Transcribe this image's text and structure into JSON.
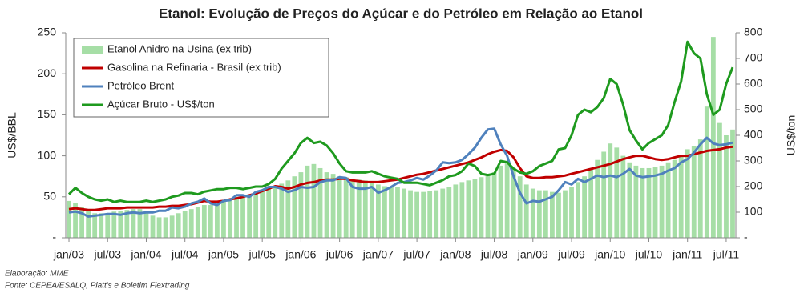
{
  "chart_data": {
    "type": "combo",
    "title": "Etanol: Evolução de Preços do Açúcar e do Petróleo em Relação ao Etanol",
    "ylabel": "US$/BBL",
    "y2label": "US$/ton",
    "notes": [
      "Elaboração: MME",
      "Fonte: CEPEA/ESALQ, Platt's e Boletim Flextrading"
    ],
    "legend": "upper left",
    "grid": false,
    "ylim": [
      0,
      250
    ],
    "yticks": [
      {
        "value": 0,
        "label": "-"
      },
      50,
      100,
      150,
      200,
      250
    ],
    "y2lim": [
      0,
      800
    ],
    "y2ticks": [
      {
        "value": 0,
        "label": "-"
      },
      100,
      200,
      300,
      400,
      500,
      600,
      700,
      800
    ],
    "categories": [
      "jan/03",
      null,
      null,
      null,
      null,
      null,
      "jul/03",
      null,
      null,
      null,
      null,
      null,
      "jan/04",
      null,
      null,
      null,
      null,
      null,
      "jul/04",
      null,
      null,
      null,
      null,
      null,
      "jan/05",
      null,
      null,
      null,
      null,
      null,
      "jul/05",
      null,
      null,
      null,
      null,
      null,
      "jan/06",
      null,
      null,
      null,
      null,
      null,
      "jul/06",
      null,
      null,
      null,
      null,
      null,
      "jan/07",
      null,
      null,
      null,
      null,
      null,
      "jul/07",
      null,
      null,
      null,
      null,
      null,
      "jan/08",
      null,
      null,
      null,
      null,
      null,
      "jul/08",
      null,
      null,
      null,
      null,
      null,
      "jan/09",
      null,
      null,
      null,
      null,
      null,
      "jul/09",
      null,
      null,
      null,
      null,
      null,
      "jan/10",
      null,
      null,
      null,
      null,
      null,
      "jul/10",
      null,
      null,
      null,
      null,
      null,
      "jan/11",
      null,
      null,
      null,
      null,
      null,
      "jul/11",
      null
    ],
    "series": [
      {
        "name": "Etanol Anidro na Usina (ex trib)",
        "type": "bar",
        "color": "#a6dea6",
        "values": [
          45,
          42,
          38,
          33,
          30,
          30,
          30,
          32,
          33,
          34,
          35,
          35,
          30,
          27,
          25,
          25,
          27,
          30,
          33,
          35,
          38,
          40,
          40,
          42,
          45,
          48,
          50,
          52,
          53,
          55,
          57,
          60,
          62,
          66,
          70,
          75,
          80,
          88,
          90,
          85,
          80,
          78,
          75,
          74,
          72,
          71,
          70,
          68,
          65,
          63,
          62,
          62,
          60,
          58,
          56,
          56,
          57,
          58,
          60,
          62,
          65,
          68,
          70,
          72,
          74,
          76,
          80,
          88,
          92,
          85,
          75,
          65,
          60,
          58,
          58,
          56,
          55,
          58,
          62,
          68,
          75,
          85,
          95,
          105,
          115,
          110,
          100,
          92,
          88,
          85,
          85,
          86,
          88,
          92,
          95,
          100,
          108,
          112,
          120,
          160,
          245,
          140,
          125,
          132
        ]
      },
      {
        "name": "Gasolina na Refinaria - Brasil (ex trib)",
        "type": "line",
        "color": "#c00000",
        "values": [
          35,
          36,
          35,
          34,
          34,
          35,
          36,
          36,
          36,
          37,
          37,
          37,
          37,
          37,
          38,
          38,
          39,
          39,
          40,
          41,
          43,
          45,
          44,
          44,
          45,
          47,
          48,
          50,
          52,
          54,
          57,
          60,
          63,
          62,
          60,
          62,
          65,
          67,
          68,
          70,
          71,
          71,
          72,
          72,
          70,
          69,
          68,
          68,
          68,
          69,
          70,
          71,
          73,
          75,
          77,
          78,
          80,
          82,
          84,
          86,
          88,
          90,
          92,
          95,
          98,
          102,
          105,
          107,
          106,
          98,
          85,
          75,
          73,
          73,
          74,
          74,
          75,
          76,
          78,
          80,
          82,
          84,
          86,
          88,
          90,
          93,
          96,
          98,
          100,
          100,
          98,
          96,
          95,
          96,
          98,
          100,
          100,
          102,
          104,
          106,
          107,
          108,
          110,
          111
        ]
      },
      {
        "name": "Petróleo Brent",
        "type": "line",
        "color": "#4f81bd",
        "values": [
          31,
          32,
          30,
          26,
          27,
          28,
          29,
          29,
          28,
          30,
          31,
          30,
          31,
          31,
          33,
          33,
          37,
          36,
          38,
          42,
          44,
          48,
          42,
          40,
          45,
          46,
          52,
          52,
          50,
          56,
          58,
          62,
          62,
          60,
          56,
          58,
          62,
          61,
          62,
          68,
          70,
          70,
          74,
          73,
          62,
          60,
          60,
          62,
          55,
          58,
          62,
          67,
          68,
          70,
          73,
          71,
          76,
          82,
          92,
          91,
          92,
          95,
          102,
          110,
          122,
          132,
          133,
          114,
          100,
          75,
          55,
          42,
          45,
          44,
          47,
          50,
          58,
          68,
          65,
          72,
          68,
          72,
          76,
          74,
          76,
          74,
          78,
          84,
          76,
          74,
          75,
          76,
          78,
          82,
          85,
          92,
          96,
          104,
          114,
          122,
          115,
          113,
          114,
          116
        ]
      },
      {
        "name": "Açúcar Bruto - US$/ton",
        "type": "line",
        "axis": "y2",
        "color": "#1e9a1e",
        "values": [
          170,
          195,
          175,
          160,
          150,
          145,
          150,
          140,
          145,
          140,
          140,
          140,
          145,
          140,
          145,
          150,
          160,
          165,
          175,
          175,
          170,
          180,
          185,
          190,
          190,
          195,
          195,
          190,
          195,
          200,
          200,
          210,
          230,
          270,
          300,
          330,
          370,
          390,
          370,
          375,
          360,
          330,
          290,
          260,
          255,
          255,
          255,
          260,
          250,
          240,
          235,
          230,
          215,
          215,
          215,
          210,
          205,
          215,
          225,
          240,
          245,
          260,
          290,
          280,
          250,
          245,
          250,
          300,
          295,
          270,
          255,
          250,
          260,
          280,
          290,
          300,
          345,
          350,
          400,
          480,
          500,
          490,
          510,
          545,
          620,
          600,
          520,
          420,
          380,
          345,
          370,
          385,
          400,
          440,
          530,
          610,
          765,
          720,
          700,
          560,
          480,
          500,
          600,
          665
        ]
      }
    ]
  }
}
